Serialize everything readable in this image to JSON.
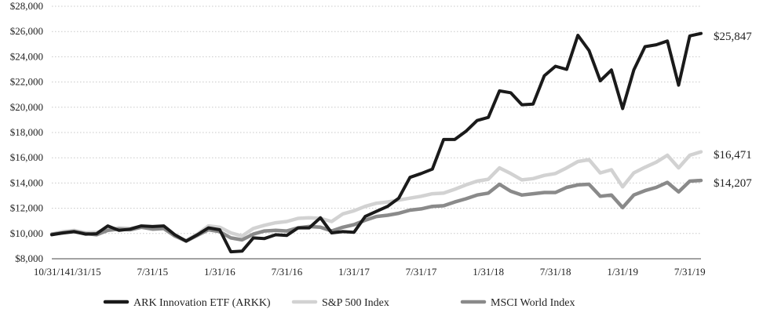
{
  "chart_data": {
    "type": "line",
    "title": "",
    "xlabel": "",
    "ylabel": "",
    "ylim": [
      8000,
      28000
    ],
    "y_ticks": [
      8000,
      10000,
      12000,
      14000,
      16000,
      18000,
      20000,
      22000,
      24000,
      26000,
      28000
    ],
    "y_tick_labels": [
      "$8,000",
      "$10,000",
      "$12,000",
      "$14,000",
      "$16,000",
      "$18,000",
      "$20,000",
      "$22,000",
      "$24,000",
      "$26,000",
      "$28,000"
    ],
    "x_tick_index": [
      0,
      3,
      9,
      15,
      21,
      27,
      33,
      39,
      45,
      51,
      57
    ],
    "x_tick_labels": [
      "10/31/14",
      "1/31/15",
      "7/31/15",
      "1/31/16",
      "7/31/16",
      "1/31/17",
      "7/31/17",
      "1/31/18",
      "7/31/18",
      "1/31/19",
      "7/31/19"
    ],
    "grid": true,
    "legend_position": "bottom",
    "series": [
      {
        "name": "ARK Innovation ETF  (ARKK)",
        "color": "#1a1a1a",
        "end_label": "$25,847",
        "values": [
          9900,
          10050,
          10150,
          9950,
          9980,
          10600,
          10250,
          10350,
          10600,
          10550,
          10600,
          9900,
          9400,
          9900,
          10450,
          10300,
          8550,
          8600,
          9650,
          9600,
          9900,
          9850,
          10450,
          10450,
          11250,
          10050,
          10150,
          10100,
          11350,
          11750,
          12150,
          12800,
          14450,
          14750,
          15100,
          17450,
          17450,
          18100,
          18950,
          19200,
          21300,
          21150,
          20200,
          20250,
          22500,
          23250,
          23000,
          25700,
          24500,
          22100,
          22950,
          19900,
          22950,
          24800,
          24950,
          25250,
          21750,
          25650,
          25847
        ]
      },
      {
        "name": "S&P 500 Index",
        "color": "#d2d2d2",
        "end_label": "$16,471",
        "values": [
          9950,
          10150,
          10250,
          10050,
          10100,
          10300,
          10450,
          10400,
          10550,
          10400,
          10450,
          9800,
          9450,
          9950,
          10600,
          10500,
          10050,
          9800,
          10400,
          10650,
          10850,
          10950,
          11200,
          11250,
          11200,
          10950,
          11550,
          11800,
          12150,
          12400,
          12500,
          12650,
          12800,
          12950,
          13150,
          13200,
          13500,
          13850,
          14150,
          14300,
          15200,
          14750,
          14250,
          14350,
          14600,
          14750,
          15200,
          15700,
          15850,
          14800,
          15050,
          13700,
          14800,
          15250,
          15650,
          16200,
          15200,
          16200,
          16471
        ]
      },
      {
        "name": "MSCI World Index",
        "color": "#8a8a8a",
        "end_label": "$14,207",
        "values": [
          9950,
          10050,
          10150,
          10000,
          9900,
          10250,
          10350,
          10300,
          10500,
          10350,
          10400,
          9800,
          9400,
          9850,
          10300,
          10150,
          9650,
          9500,
          9950,
          10200,
          10250,
          10200,
          10450,
          10550,
          10500,
          10200,
          10500,
          10700,
          11050,
          11350,
          11450,
          11600,
          11850,
          11950,
          12150,
          12200,
          12500,
          12750,
          13050,
          13200,
          13900,
          13350,
          13050,
          13150,
          13250,
          13250,
          13650,
          13850,
          13900,
          12950,
          13050,
          12050,
          13050,
          13400,
          13650,
          14050,
          13300,
          14150,
          14207
        ]
      }
    ]
  }
}
